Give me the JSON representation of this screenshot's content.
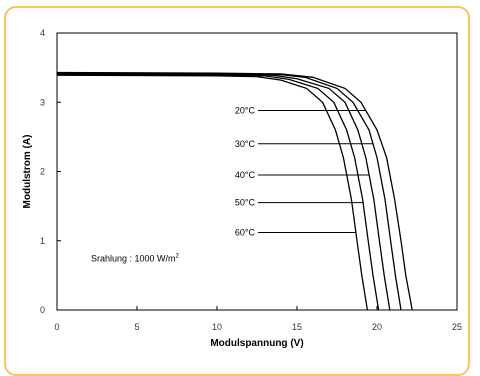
{
  "chart_data": {
    "type": "line",
    "xlabel": "Modulspannung (V)",
    "ylabel": "Modulstrom (A)",
    "xlim": [
      0,
      25
    ],
    "ylim": [
      0,
      4
    ],
    "x_ticks": [
      "0",
      "5",
      "10",
      "15",
      "20",
      "25"
    ],
    "y_ticks": [
      "0",
      "1",
      "2",
      "3",
      "4"
    ],
    "grid": false,
    "annotation": {
      "text": "Srahlung : 1000 W/m",
      "superscript": "2"
    },
    "series": [
      {
        "name": "20°C",
        "color": "#000000",
        "label_at_y": 2.88,
        "points": [
          [
            0,
            3.43
          ],
          [
            10,
            3.42
          ],
          [
            14,
            3.41
          ],
          [
            16,
            3.36
          ],
          [
            18,
            3.2
          ],
          [
            19,
            3.0
          ],
          [
            20,
            2.6
          ],
          [
            20.6,
            2.2
          ],
          [
            21.1,
            1.6
          ],
          [
            21.5,
            1.0
          ],
          [
            21.8,
            0.5
          ],
          [
            22.2,
            0
          ]
        ]
      },
      {
        "name": "30°C",
        "color": "#000000",
        "label_at_y": 2.4,
        "points": [
          [
            0,
            3.42
          ],
          [
            10,
            3.41
          ],
          [
            14,
            3.4
          ],
          [
            15.5,
            3.36
          ],
          [
            17.5,
            3.2
          ],
          [
            18.5,
            3.0
          ],
          [
            19.5,
            2.6
          ],
          [
            20,
            2.2
          ],
          [
            20.5,
            1.6
          ],
          [
            20.85,
            1.0
          ],
          [
            21.15,
            0.5
          ],
          [
            21.5,
            0
          ]
        ]
      },
      {
        "name": "40°C",
        "color": "#000000",
        "label_at_y": 1.95,
        "points": [
          [
            0,
            3.41
          ],
          [
            10,
            3.4
          ],
          [
            13.5,
            3.39
          ],
          [
            15,
            3.34
          ],
          [
            17,
            3.2
          ],
          [
            18,
            3.0
          ],
          [
            18.8,
            2.6
          ],
          [
            19.3,
            2.2
          ],
          [
            19.8,
            1.6
          ],
          [
            20.15,
            1.0
          ],
          [
            20.45,
            0.5
          ],
          [
            20.8,
            0
          ]
        ]
      },
      {
        "name": "50°C",
        "color": "#000000",
        "label_at_y": 1.55,
        "points": [
          [
            0,
            3.4
          ],
          [
            10,
            3.39
          ],
          [
            13,
            3.38
          ],
          [
            14.5,
            3.33
          ],
          [
            16.3,
            3.2
          ],
          [
            17.3,
            3.0
          ],
          [
            18.1,
            2.6
          ],
          [
            18.6,
            2.2
          ],
          [
            19.1,
            1.6
          ],
          [
            19.45,
            1.0
          ],
          [
            19.75,
            0.5
          ],
          [
            20.1,
            0
          ]
        ]
      },
      {
        "name": "60°C",
        "color": "#000000",
        "label_at_y": 1.12,
        "points": [
          [
            0,
            3.39
          ],
          [
            10,
            3.38
          ],
          [
            12.5,
            3.37
          ],
          [
            14,
            3.32
          ],
          [
            15.6,
            3.2
          ],
          [
            16.6,
            3.0
          ],
          [
            17.4,
            2.6
          ],
          [
            17.9,
            2.2
          ],
          [
            18.4,
            1.6
          ],
          [
            18.75,
            1.0
          ],
          [
            19.05,
            0.5
          ],
          [
            19.4,
            0
          ]
        ]
      }
    ]
  }
}
